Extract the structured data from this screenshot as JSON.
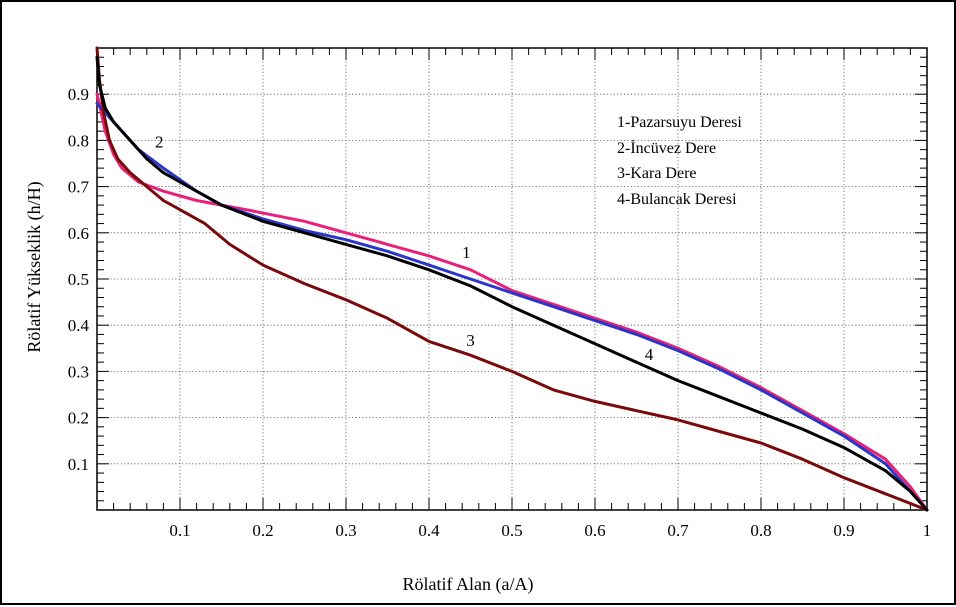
{
  "chart_data": {
    "type": "line",
    "xlabel": "Rölatif Alan (a/A)",
    "ylabel": "Rölatif Yükseklik (h/H)",
    "xlim": [
      0,
      1
    ],
    "ylim": [
      0,
      1
    ],
    "x_ticks": [
      "0.1",
      "0.2",
      "0.3",
      "0.4",
      "0.5",
      "0.6",
      "0.7",
      "0.8",
      "0.9",
      "1"
    ],
    "y_ticks": [
      "0.1",
      "0.2",
      "0.3",
      "0.4",
      "0.5",
      "0.6",
      "0.7",
      "0.8",
      "0.9"
    ],
    "grid": true,
    "legend_position": "top-right",
    "legend": [
      "1-Pazarsuyu Deresi",
      "2-İncüvez Dere",
      "3-Kara Dere",
      "4-Bulancak Deresi"
    ],
    "series": [
      {
        "label": "1",
        "color": "#e8207a",
        "points": [
          [
            0.0,
            0.9
          ],
          [
            0.005,
            0.86
          ],
          [
            0.01,
            0.82
          ],
          [
            0.02,
            0.77
          ],
          [
            0.03,
            0.74
          ],
          [
            0.05,
            0.71
          ],
          [
            0.08,
            0.69
          ],
          [
            0.12,
            0.67
          ],
          [
            0.18,
            0.65
          ],
          [
            0.25,
            0.625
          ],
          [
            0.3,
            0.6
          ],
          [
            0.35,
            0.575
          ],
          [
            0.4,
            0.55
          ],
          [
            0.45,
            0.52
          ],
          [
            0.5,
            0.475
          ],
          [
            0.55,
            0.445
          ],
          [
            0.6,
            0.415
          ],
          [
            0.65,
            0.385
          ],
          [
            0.7,
            0.35
          ],
          [
            0.75,
            0.31
          ],
          [
            0.8,
            0.265
          ],
          [
            0.85,
            0.215
          ],
          [
            0.9,
            0.165
          ],
          [
            0.95,
            0.11
          ],
          [
            0.98,
            0.05
          ],
          [
            1.0,
            0.0
          ]
        ]
      },
      {
        "label": "2",
        "color": "#2a36c8",
        "points": [
          [
            0.0,
            0.88
          ],
          [
            0.01,
            0.86
          ],
          [
            0.03,
            0.82
          ],
          [
            0.05,
            0.78
          ],
          [
            0.08,
            0.74
          ],
          [
            0.12,
            0.69
          ],
          [
            0.15,
            0.66
          ],
          [
            0.2,
            0.63
          ],
          [
            0.25,
            0.605
          ],
          [
            0.3,
            0.585
          ],
          [
            0.35,
            0.56
          ],
          [
            0.4,
            0.53
          ],
          [
            0.45,
            0.5
          ],
          [
            0.5,
            0.47
          ],
          [
            0.55,
            0.44
          ],
          [
            0.6,
            0.41
          ],
          [
            0.65,
            0.38
          ],
          [
            0.7,
            0.345
          ],
          [
            0.75,
            0.305
          ],
          [
            0.8,
            0.26
          ],
          [
            0.85,
            0.21
          ],
          [
            0.9,
            0.16
          ],
          [
            0.95,
            0.1
          ],
          [
            0.98,
            0.04
          ],
          [
            1.0,
            0.0
          ]
        ]
      },
      {
        "label": "3",
        "color": "#7a0a0a",
        "points": [
          [
            0.0,
            1.0
          ],
          [
            0.003,
            0.93
          ],
          [
            0.008,
            0.86
          ],
          [
            0.015,
            0.8
          ],
          [
            0.025,
            0.76
          ],
          [
            0.04,
            0.73
          ],
          [
            0.06,
            0.7
          ],
          [
            0.08,
            0.67
          ],
          [
            0.1,
            0.65
          ],
          [
            0.13,
            0.62
          ],
          [
            0.16,
            0.575
          ],
          [
            0.2,
            0.53
          ],
          [
            0.25,
            0.49
          ],
          [
            0.3,
            0.455
          ],
          [
            0.35,
            0.415
          ],
          [
            0.4,
            0.365
          ],
          [
            0.45,
            0.335
          ],
          [
            0.5,
            0.3
          ],
          [
            0.55,
            0.26
          ],
          [
            0.6,
            0.235
          ],
          [
            0.65,
            0.215
          ],
          [
            0.7,
            0.195
          ],
          [
            0.75,
            0.17
          ],
          [
            0.8,
            0.145
          ],
          [
            0.85,
            0.11
          ],
          [
            0.9,
            0.07
          ],
          [
            0.95,
            0.035
          ],
          [
            1.0,
            0.0
          ]
        ]
      },
      {
        "label": "4",
        "color": "#000000",
        "points": [
          [
            0.0,
            0.98
          ],
          [
            0.003,
            0.92
          ],
          [
            0.01,
            0.87
          ],
          [
            0.02,
            0.84
          ],
          [
            0.04,
            0.8
          ],
          [
            0.06,
            0.76
          ],
          [
            0.08,
            0.73
          ],
          [
            0.1,
            0.71
          ],
          [
            0.15,
            0.66
          ],
          [
            0.2,
            0.625
          ],
          [
            0.25,
            0.6
          ],
          [
            0.3,
            0.575
          ],
          [
            0.35,
            0.55
          ],
          [
            0.4,
            0.52
          ],
          [
            0.45,
            0.485
          ],
          [
            0.5,
            0.44
          ],
          [
            0.55,
            0.4
          ],
          [
            0.6,
            0.36
          ],
          [
            0.65,
            0.32
          ],
          [
            0.7,
            0.28
          ],
          [
            0.75,
            0.245
          ],
          [
            0.8,
            0.21
          ],
          [
            0.85,
            0.175
          ],
          [
            0.9,
            0.135
          ],
          [
            0.95,
            0.085
          ],
          [
            0.98,
            0.04
          ],
          [
            1.0,
            0.0
          ]
        ]
      }
    ],
    "annotations": [
      {
        "text": "1",
        "x": 0.445,
        "y": 0.545
      },
      {
        "text": "2",
        "x": 0.075,
        "y": 0.785
      },
      {
        "text": "3",
        "x": 0.45,
        "y": 0.355
      },
      {
        "text": "4",
        "x": 0.665,
        "y": 0.325
      }
    ]
  }
}
